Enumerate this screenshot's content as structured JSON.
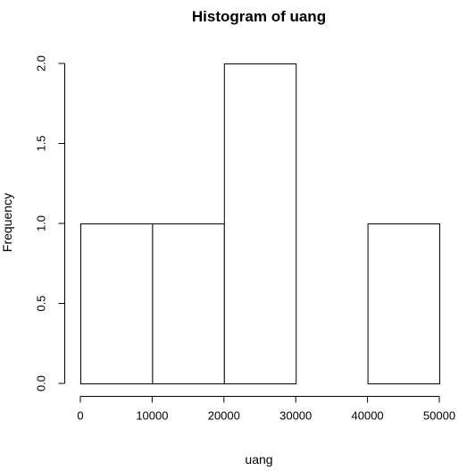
{
  "chart_data": {
    "type": "bar",
    "title": "Histogram of uang",
    "xlabel": "uang",
    "ylabel": "Frequency",
    "bins": [
      {
        "start": 0,
        "end": 10000,
        "count": 1
      },
      {
        "start": 10000,
        "end": 20000,
        "count": 1
      },
      {
        "start": 20000,
        "end": 30000,
        "count": 2
      },
      {
        "start": 30000,
        "end": 40000,
        "count": 0
      },
      {
        "start": 40000,
        "end": 50000,
        "count": 1
      }
    ],
    "xlim": [
      0,
      50000
    ],
    "ylim": [
      0,
      2
    ],
    "x_ticks": [
      0,
      10000,
      20000,
      30000,
      40000,
      50000
    ],
    "x_tick_labels": [
      "0",
      "10000",
      "20000",
      "30000",
      "40000",
      "50000"
    ],
    "y_ticks": [
      0,
      0.5,
      1,
      1.5,
      2
    ],
    "y_tick_labels": [
      "0.0",
      "0.5",
      "1.0",
      "1.5",
      "2.0"
    ],
    "grid": false,
    "legend": "none",
    "colors": {
      "bar_fill": "#ffffff",
      "bar_stroke": "#000000"
    }
  }
}
